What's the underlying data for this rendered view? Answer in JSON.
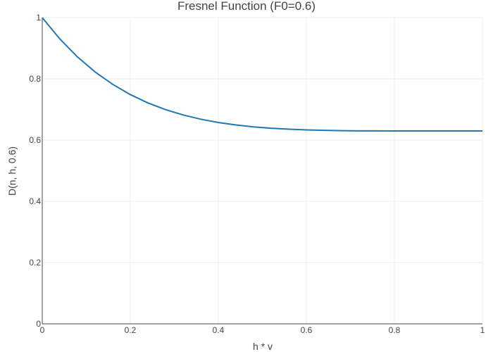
{
  "chart_data": {
    "type": "line",
    "title": "Fresnel Function (F0=0.6)",
    "xlabel": "h * v",
    "ylabel": "D(n, h, 0.6)",
    "xlim": [
      0,
      1
    ],
    "ylim": [
      0,
      1
    ],
    "x_ticks": [
      0,
      0.2,
      0.4,
      0.6,
      0.8,
      1
    ],
    "x_tick_labels": [
      "0",
      "0.2",
      "0.4",
      "0.6",
      "0.8",
      "1"
    ],
    "y_ticks": [
      0,
      0.2,
      0.4,
      0.6,
      0.8,
      1
    ],
    "y_tick_labels": [
      "0",
      "0.2",
      "0.4",
      "0.6",
      "0.8",
      "1"
    ],
    "grid": true,
    "series": [
      {
        "color": "#1f77b4",
        "x": [
          0,
          0.04,
          0.08,
          0.12,
          0.16,
          0.2,
          0.24,
          0.28,
          0.32,
          0.36,
          0.4,
          0.44,
          0.48,
          0.52,
          0.56,
          0.6,
          0.64,
          0.68,
          0.72,
          0.76,
          0.8,
          0.84,
          0.88,
          0.92,
          0.96,
          1
        ],
        "y": [
          1.0,
          0.9302,
          0.8715,
          0.8226,
          0.782,
          0.7487,
          0.7215,
          0.6996,
          0.682,
          0.6682,
          0.6575,
          0.6493,
          0.6432,
          0.6387,
          0.6355,
          0.6333,
          0.6318,
          0.6308,
          0.6302,
          0.6301,
          0.63,
          0.63,
          0.63,
          0.63,
          0.63,
          0.63
        ]
      }
    ]
  }
}
